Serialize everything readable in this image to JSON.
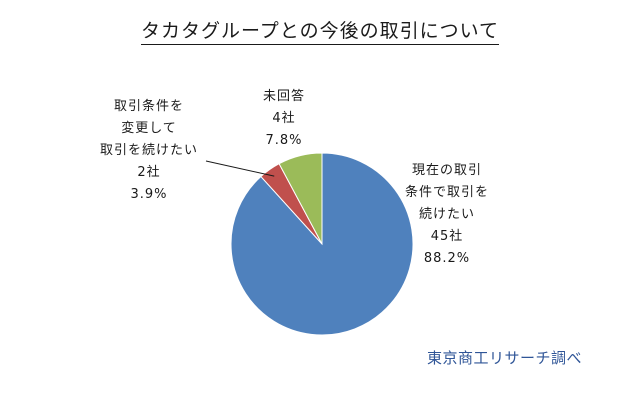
{
  "chart_data": {
    "type": "pie",
    "title": "タカタグループとの今後の取引について",
    "slices": [
      {
        "label_lines": [
          "現在の取引",
          "条件で取引を",
          "続けたい"
        ],
        "count": "45社",
        "percent": "88.2%",
        "value": 88.2,
        "color": "#4f81bd"
      },
      {
        "label_lines": [
          "取引条件を",
          "変更して",
          "取引を続けたい"
        ],
        "count": "2社",
        "percent": "3.9%",
        "value": 3.9,
        "color": "#c0504d"
      },
      {
        "label_lines": [
          "未回答"
        ],
        "count": "4社",
        "percent": "7.8%",
        "value": 7.8,
        "color": "#9bbb59"
      }
    ],
    "start_angle_deg": 0,
    "direction": "clockwise",
    "legend": "none"
  },
  "source": "東京商工リサーチ調べ"
}
